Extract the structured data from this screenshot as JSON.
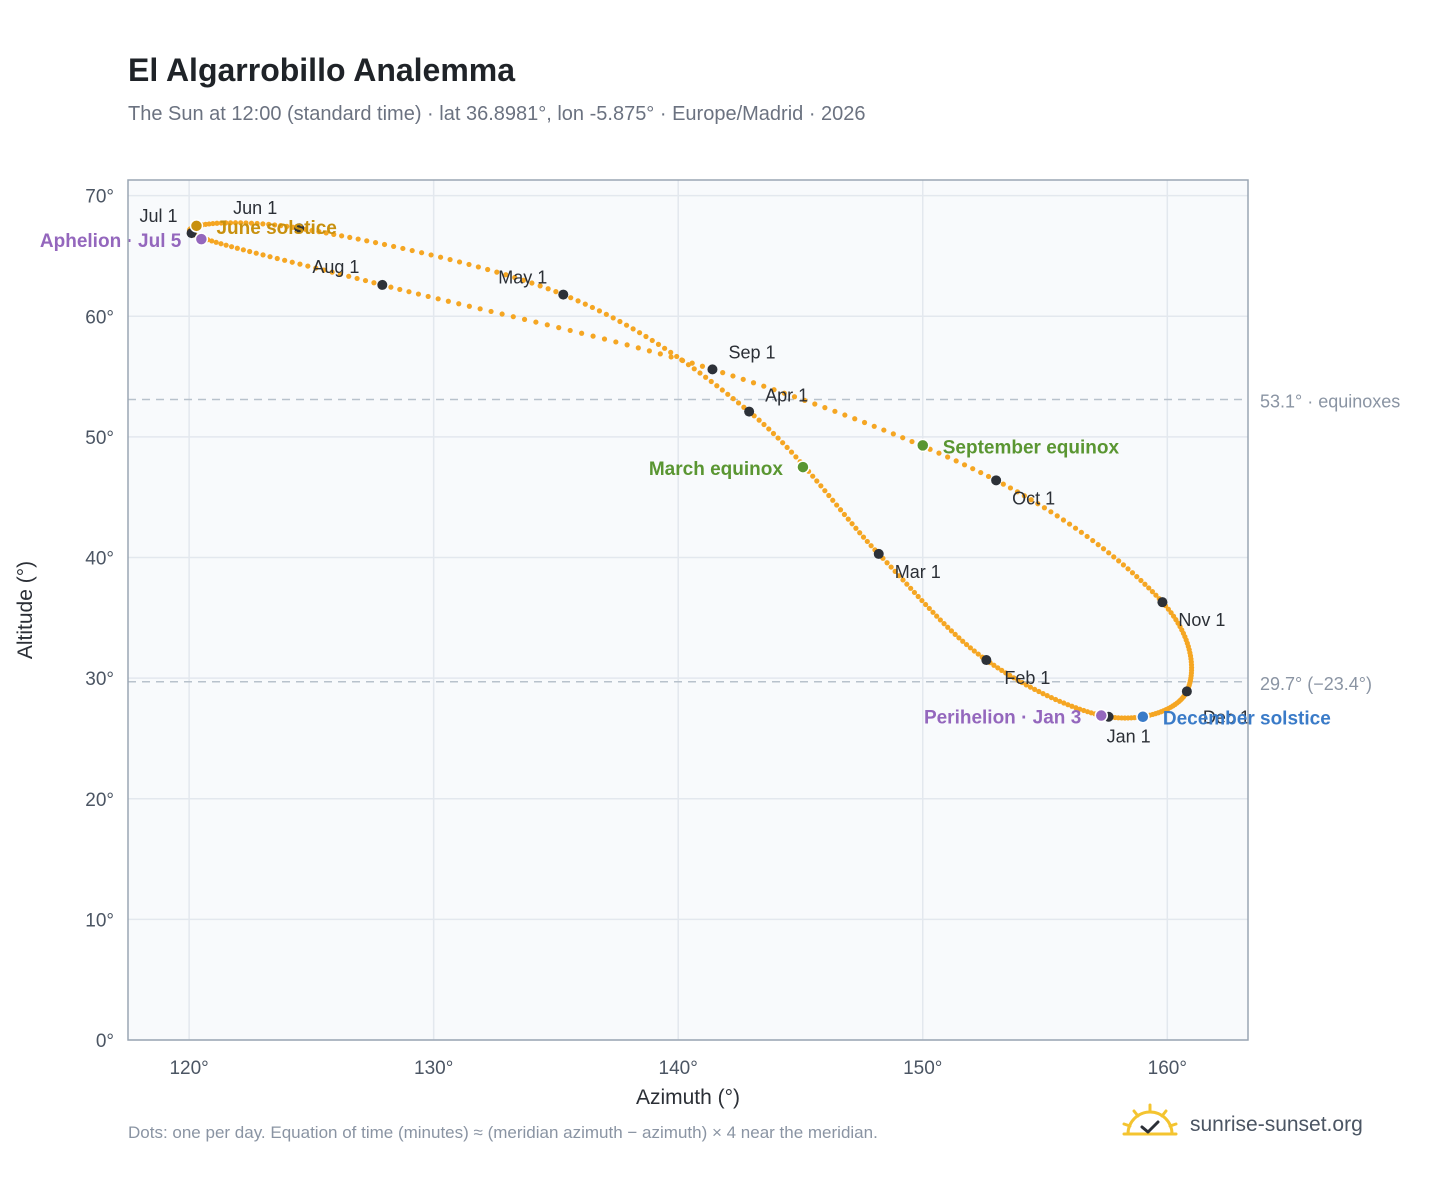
{
  "header": {
    "title": "El Algarrobillo Analemma",
    "subtitle": "The Sun at 12:00 (standard time) · lat 36.8981°, lon -5.875° · Europe/Madrid · 2026"
  },
  "footer": {
    "note": "Dots: one per day. Equation of time (minutes) ≈ (meridian azimuth − azimuth) × 4 near the meridian.",
    "brand": "sunrise-sunset.org"
  },
  "colors": {
    "curve": "#f5a623",
    "month_marker": "#2d3138",
    "equinox": "#5a9632",
    "june_solstice": "#c8900e",
    "december_solstice": "#3a7bc8",
    "apsis": "#9467bd",
    "reference_line": "#b8c2cc"
  },
  "chart_data": {
    "type": "scatter",
    "xlabel": "Azimuth (°)",
    "ylabel": "Altitude (°)",
    "xlim": [
      117.5,
      163.3
    ],
    "ylim": [
      0,
      71.3
    ],
    "grid": true,
    "x_ticks": [
      120,
      130,
      140,
      150,
      160
    ],
    "y_ticks": [
      0,
      10,
      20,
      30,
      40,
      50,
      60,
      70
    ],
    "x_tick_labels": [
      "120°",
      "130°",
      "140°",
      "150°",
      "160°"
    ],
    "y_tick_labels": [
      "0°",
      "10°",
      "20°",
      "30°",
      "40°",
      "50°",
      "60°",
      "70°"
    ],
    "reference_lines": [
      {
        "y": 53.1,
        "label": "53.1° · equinoxes"
      },
      {
        "y": 29.7,
        "label": "29.7° (−23.4°)"
      }
    ],
    "month_markers": [
      {
        "label": "Jan 1",
        "az": 157.6,
        "alt": 26.8
      },
      {
        "label": "Feb 1",
        "az": 152.6,
        "alt": 31.5
      },
      {
        "label": "Mar 1",
        "az": 148.2,
        "alt": 40.3
      },
      {
        "label": "Apr 1",
        "az": 142.9,
        "alt": 52.1
      },
      {
        "label": "May 1",
        "az": 135.3,
        "alt": 61.8
      },
      {
        "label": "Jun 1",
        "az": 124.5,
        "alt": 67.3
      },
      {
        "label": "Jul 1",
        "az": 120.1,
        "alt": 66.9
      },
      {
        "label": "Aug 1",
        "az": 127.9,
        "alt": 62.6
      },
      {
        "label": "Sep 1",
        "az": 141.4,
        "alt": 55.6
      },
      {
        "label": "Oct 1",
        "az": 153.0,
        "alt": 46.4
      },
      {
        "label": "Nov 1",
        "az": 159.8,
        "alt": 36.3
      },
      {
        "label": "Dec 1",
        "az": 160.8,
        "alt": 28.9
      }
    ],
    "special_points": [
      {
        "label": "March equinox",
        "az": 145.1,
        "alt": 47.5,
        "color_key": "equinox"
      },
      {
        "label": "June solstice",
        "az": 120.3,
        "alt": 67.5,
        "color_key": "june_solstice"
      },
      {
        "label": "September equinox",
        "az": 150.0,
        "alt": 49.3,
        "color_key": "equinox"
      },
      {
        "label": "December solstice",
        "az": 159.0,
        "alt": 26.8,
        "color_key": "december_solstice"
      },
      {
        "label": "Perihelion · Jan 3",
        "az": 157.3,
        "alt": 26.9,
        "color_key": "apsis"
      },
      {
        "label": "Aphelion · Jul 5",
        "az": 120.5,
        "alt": 66.4,
        "color_key": "apsis"
      }
    ]
  }
}
